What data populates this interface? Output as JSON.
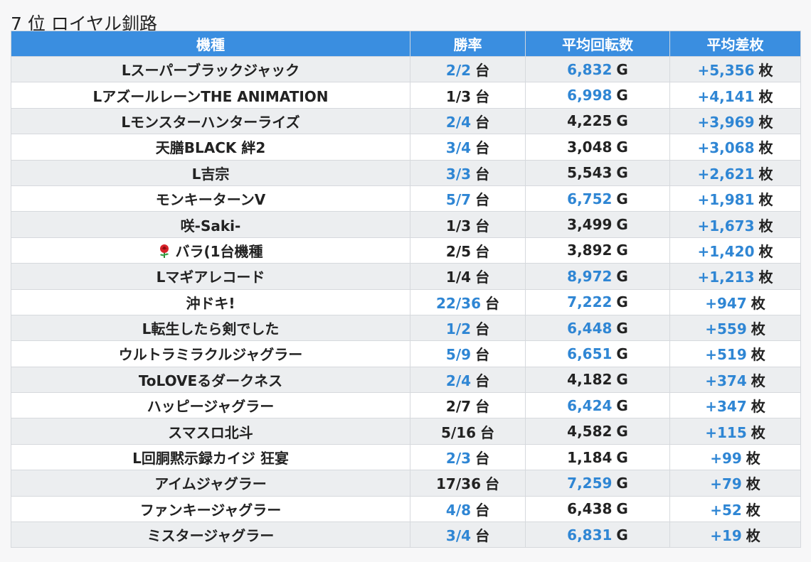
{
  "title": "7 位 ロイヤル釧路",
  "table": {
    "headers": [
      "機種",
      "勝率",
      "平均回転数",
      "平均差枚"
    ],
    "units": {
      "win": "台",
      "spins": "G",
      "diff": "枚"
    },
    "rows": [
      {
        "machine": "Lスーパーブラックジャック",
        "win": "2/2",
        "win_blue": true,
        "spins": "6,832",
        "spins_blue": true,
        "diff": "+5,356"
      },
      {
        "machine": "LアズールレーンTHE ANIMATION",
        "win": "1/3",
        "win_blue": false,
        "spins": "6,998",
        "spins_blue": true,
        "diff": "+4,141"
      },
      {
        "machine": "Lモンスターハンターライズ",
        "win": "2/4",
        "win_blue": true,
        "spins": "4,225",
        "spins_blue": false,
        "diff": "+3,969"
      },
      {
        "machine": "天膳BLACK 絆2",
        "win": "3/4",
        "win_blue": true,
        "spins": "3,048",
        "spins_blue": false,
        "diff": "+3,068"
      },
      {
        "machine": "L吉宗",
        "win": "3/3",
        "win_blue": true,
        "spins": "5,543",
        "spins_blue": false,
        "diff": "+2,621"
      },
      {
        "machine": "モンキーターンV",
        "win": "5/7",
        "win_blue": true,
        "spins": "6,752",
        "spins_blue": true,
        "diff": "+1,981"
      },
      {
        "machine": "咲-Saki-",
        "win": "1/3",
        "win_blue": false,
        "spins": "3,499",
        "spins_blue": false,
        "diff": "+1,673"
      },
      {
        "machine": "バラ(1台機種",
        "icon": "rose-icon",
        "win": "2/5",
        "win_blue": false,
        "spins": "3,892",
        "spins_blue": false,
        "diff": "+1,420"
      },
      {
        "machine": "Lマギアレコード",
        "win": "1/4",
        "win_blue": false,
        "spins": "8,972",
        "spins_blue": true,
        "diff": "+1,213"
      },
      {
        "machine": "沖ドキ!",
        "win": "22/36",
        "win_blue": true,
        "spins": "7,222",
        "spins_blue": true,
        "diff": "+947"
      },
      {
        "machine": "L転生したら剣でした",
        "win": "1/2",
        "win_blue": true,
        "spins": "6,448",
        "spins_blue": true,
        "diff": "+559"
      },
      {
        "machine": "ウルトラミラクルジャグラー",
        "win": "5/9",
        "win_blue": true,
        "spins": "6,651",
        "spins_blue": true,
        "diff": "+519"
      },
      {
        "machine": "ToLOVEるダークネス",
        "win": "2/4",
        "win_blue": true,
        "spins": "4,182",
        "spins_blue": false,
        "diff": "+374"
      },
      {
        "machine": "ハッピージャグラー",
        "win": "2/7",
        "win_blue": false,
        "spins": "6,424",
        "spins_blue": true,
        "diff": "+347"
      },
      {
        "machine": "スマスロ北斗",
        "win": "5/16",
        "win_blue": false,
        "spins": "4,582",
        "spins_blue": false,
        "diff": "+115"
      },
      {
        "machine": "L回胴黙示録カイジ 狂宴",
        "win": "2/3",
        "win_blue": true,
        "spins": "1,184",
        "spins_blue": false,
        "diff": "+99"
      },
      {
        "machine": "アイムジャグラー",
        "win": "17/36",
        "win_blue": false,
        "spins": "7,259",
        "spins_blue": true,
        "diff": "+79"
      },
      {
        "machine": "ファンキージャグラー",
        "win": "4/8",
        "win_blue": true,
        "spins": "6,438",
        "spins_blue": false,
        "diff": "+52"
      },
      {
        "machine": "ミスタージャグラー",
        "win": "3/4",
        "win_blue": true,
        "spins": "6,831",
        "spins_blue": true,
        "diff": "+19"
      }
    ]
  },
  "colors": {
    "header_bg": "#3a8ee0",
    "link_blue": "#2f86d4",
    "row_alt": "#eceef0"
  }
}
